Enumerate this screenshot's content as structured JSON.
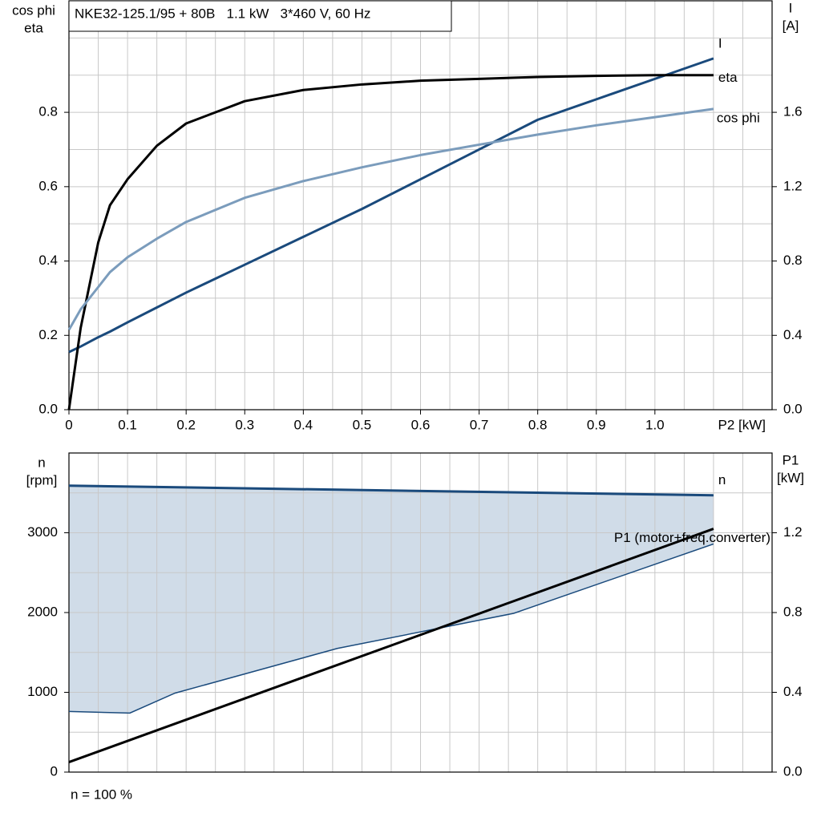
{
  "chart_data": [
    {
      "type": "line",
      "title": "NKE32-125.1/95 + 80B   1.1 kW   3*460 V, 60 Hz",
      "xlabel": "P2 [kW]",
      "ylabel": [
        "cos phi",
        "eta"
      ],
      "y2label": [
        "I",
        "[A]"
      ],
      "x": [
        0,
        0.02,
        0.05,
        0.07,
        0.1,
        0.15,
        0.2,
        0.3,
        0.4,
        0.5,
        0.6,
        0.7,
        0.8,
        0.9,
        1.0,
        1.1
      ],
      "xlim": [
        0,
        1.2
      ],
      "xticks": [
        0,
        {
          "value": 0.1,
          "label": "0.1"
        },
        {
          "value": 0.2,
          "label": "0.2"
        },
        {
          "value": 0.3,
          "label": "0.3"
        },
        {
          "value": 0.4,
          "label": "0.4"
        },
        {
          "value": 0.5,
          "label": "0.5"
        },
        {
          "value": 0.6,
          "label": "0.6"
        },
        {
          "value": 0.7,
          "label": "0.7"
        },
        {
          "value": 0.8,
          "label": "0.8"
        },
        {
          "value": 0.9,
          "label": "0.9"
        },
        {
          "value": 1.0,
          "label": "1.0"
        }
      ],
      "xgrid": [
        0.05,
        0.1,
        0.15,
        0.2,
        0.25,
        0.3,
        0.35,
        0.4,
        0.45,
        0.5,
        0.55,
        0.6,
        0.65,
        0.7,
        0.75,
        0.8,
        0.85,
        0.9,
        0.95,
        1.0,
        1.05,
        1.1,
        1.15
      ],
      "ylim": [
        0,
        1.1
      ],
      "yticks": [
        {
          "value": 0,
          "label": "0.0"
        },
        0.2,
        0.4,
        0.6,
        0.8
      ],
      "ygrid": [
        0.1,
        0.2,
        0.3,
        0.4,
        0.5,
        0.6,
        0.7,
        0.8,
        0.9,
        1.0
      ],
      "y2lim": [
        0,
        2.2
      ],
      "y2ticks": [
        {
          "value": 0,
          "label": "0.0"
        },
        0.4,
        0.8,
        1.2,
        1.6
      ],
      "series": [
        {
          "name": "I",
          "color": "#1a4a7c",
          "axis": "y2",
          "values": [
            0.31,
            0.34,
            0.39,
            0.42,
            0.47,
            0.55,
            0.63,
            0.78,
            0.93,
            1.08,
            1.24,
            1.4,
            1.56,
            1.67,
            1.78,
            1.89
          ]
        },
        {
          "name": "eta",
          "color": "#000000",
          "values": [
            0,
            0.22,
            0.45,
            0.55,
            0.62,
            0.71,
            0.77,
            0.83,
            0.86,
            0.875,
            0.885,
            0.89,
            0.895,
            0.898,
            0.9,
            0.9
          ]
        },
        {
          "name": "cos phi",
          "color": "#7b9cbc",
          "values": [
            0.215,
            0.27,
            0.33,
            0.37,
            0.41,
            0.46,
            0.505,
            0.57,
            0.615,
            0.652,
            0.685,
            0.713,
            0.74,
            0.765,
            0.787,
            0.809
          ]
        }
      ]
    },
    {
      "type": "line",
      "ylabel": [
        "n",
        "[rpm]"
      ],
      "y2label": [
        "P1",
        "[kW]"
      ],
      "note": "n = 100 %",
      "xlim": [
        0,
        1.2
      ],
      "xgrid": [
        0.05,
        0.1,
        0.15,
        0.2,
        0.25,
        0.3,
        0.35,
        0.4,
        0.45,
        0.5,
        0.55,
        0.6,
        0.65,
        0.7,
        0.75,
        0.8,
        0.85,
        0.9,
        0.95,
        1.0,
        1.05,
        1.1,
        1.15
      ],
      "ylim": [
        0,
        4000
      ],
      "yticks": [
        0,
        1000,
        2000,
        3000
      ],
      "ygrid": [
        500,
        1000,
        1500,
        2000,
        2500,
        3000,
        3500
      ],
      "y2lim": [
        0,
        1.6
      ],
      "y2ticks": [
        {
          "value": 0,
          "label": "0.0"
        },
        0.4,
        0.8,
        1.2
      ],
      "area": {
        "color": "#d0dce8",
        "line_color": "#1a4a7c",
        "x": [
          0,
          0.104,
          0.181,
          0.458,
          0.759,
          1.1
        ],
        "lower": [
          760,
          740,
          990,
          1550,
          1990,
          2860
        ]
      },
      "series": [
        {
          "name": "n",
          "color": "#1a4a7c",
          "x": [
            0,
            1.1
          ],
          "values": [
            3590,
            3470
          ]
        },
        {
          "name": "P1 (motor+freq.converter)",
          "color": "#000000",
          "axis": "y2",
          "x": [
            0,
            1.1
          ],
          "values": [
            0.05,
            1.22
          ]
        }
      ]
    }
  ]
}
